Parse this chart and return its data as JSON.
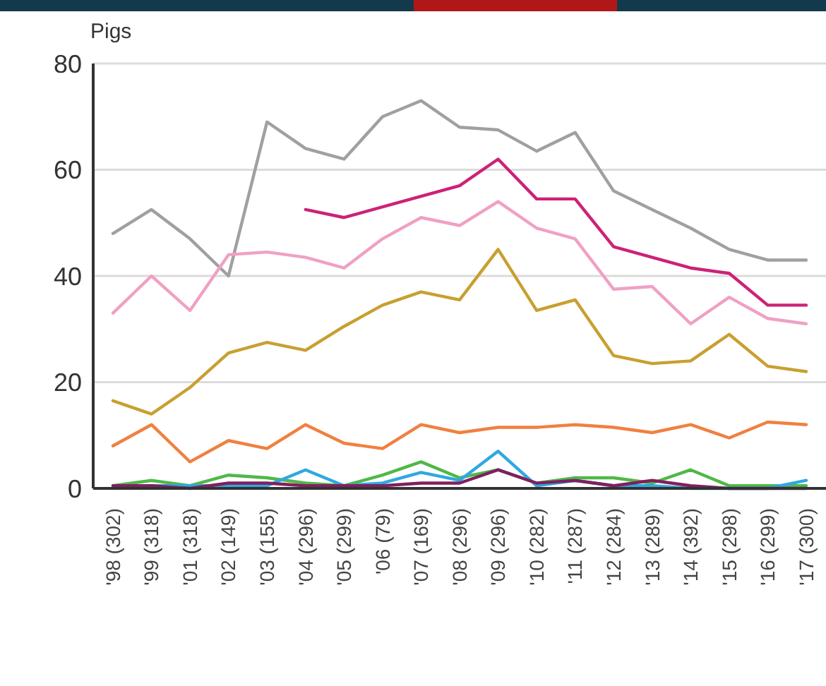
{
  "chart_data": {
    "type": "line",
    "ylabel": "Pigs",
    "categories": [
      "'98 (302)",
      "'99 (318)",
      "'01 (318)",
      "'02 (149)",
      "'03 (155)",
      "'04 (296)",
      "'05 (299)",
      "'06 (79)",
      "'07 (169)",
      "'08 (296)",
      "'09 (296)",
      "'10 (282)",
      "'11 (287)",
      "'12 (284)",
      "'13 (289)",
      "'14 (392)",
      "'15 (298)",
      "'16 (299)",
      "'17 (300)"
    ],
    "series": [
      {
        "color": "#a0a0a0",
        "values": [
          48,
          52.5,
          47,
          40,
          69,
          64,
          62,
          70,
          73,
          68,
          67.5,
          63.5,
          67,
          56,
          52.5,
          49,
          45,
          43,
          43
        ]
      },
      {
        "color": "#cc2277",
        "values": [
          null,
          null,
          null,
          null,
          null,
          52.5,
          51,
          53,
          55,
          57,
          62,
          54.5,
          54.5,
          45.5,
          43.5,
          41.5,
          40.5,
          34.5,
          34.5
        ]
      },
      {
        "color": "#f0a0c4",
        "values": [
          33,
          40,
          33.5,
          44,
          44.5,
          43.5,
          41.5,
          47,
          51,
          49.5,
          54,
          49,
          47,
          37.5,
          38,
          31,
          36,
          32,
          31
        ]
      },
      {
        "color": "#c8a030",
        "values": [
          16.5,
          14,
          19,
          25.5,
          27.5,
          26,
          30.5,
          34.5,
          37,
          35.5,
          45,
          33.5,
          35.5,
          25,
          23.5,
          24,
          29,
          23,
          22
        ]
      },
      {
        "color": "#f08040",
        "values": [
          8,
          12,
          5,
          9,
          7.5,
          12,
          8.5,
          7.5,
          12,
          10.5,
          11.5,
          11.5,
          12,
          11.5,
          10.5,
          12,
          9.5,
          12.5,
          12
        ]
      },
      {
        "color": "#50b848",
        "values": [
          0.5,
          1.5,
          0.5,
          2.5,
          2,
          1,
          0.5,
          2.5,
          5,
          2,
          3.5,
          1,
          2,
          2,
          1,
          3.5,
          0.5,
          0.5,
          0.5
        ]
      },
      {
        "color": "#30a8e0",
        "values": [
          0,
          0.5,
          0.5,
          0.5,
          0.5,
          3.5,
          0.5,
          1,
          3,
          1.5,
          7,
          0.5,
          1.5,
          0.5,
          0.5,
          0,
          0,
          0,
          1.5
        ]
      },
      {
        "color": "#802060",
        "values": [
          0.5,
          0.5,
          0,
          1,
          1,
          0.5,
          0.5,
          0.5,
          1,
          1,
          3.5,
          1,
          1.5,
          0.5,
          1.5,
          0.5,
          0,
          0,
          0
        ]
      }
    ],
    "ylim": [
      0,
      80
    ],
    "yticks": [
      0,
      20,
      40,
      60,
      80
    ],
    "grid": "y",
    "marker": "none",
    "line_style": "solid"
  }
}
